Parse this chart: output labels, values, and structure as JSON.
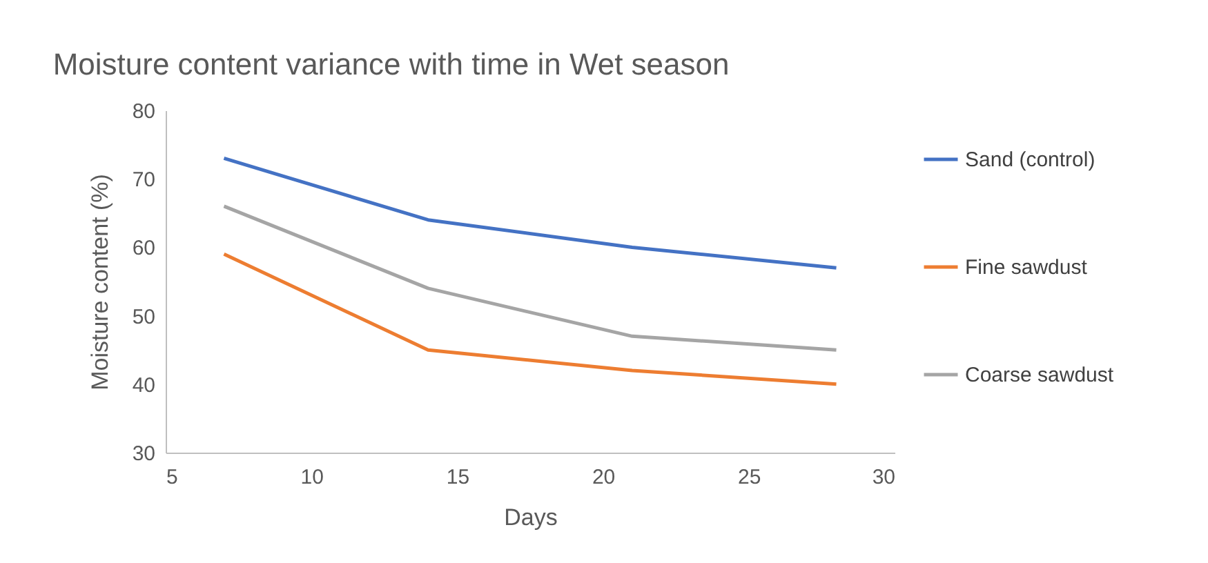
{
  "chart_data": {
    "type": "line",
    "title": "Moisture content variance with time in Wet season",
    "xlabel": "Days",
    "ylabel": "Moisture content (%)",
    "x": [
      7,
      14,
      21,
      28
    ],
    "series": [
      {
        "name": "Sand (control)",
        "color": "#4472c4",
        "values": [
          73,
          64,
          60,
          57
        ]
      },
      {
        "name": "Fine sawdust",
        "color": "#ed7d31",
        "values": [
          59,
          45,
          42,
          40
        ]
      },
      {
        "name": "Coarse sawdust",
        "color": "#a5a5a5",
        "values": [
          66,
          54,
          47,
          45
        ]
      }
    ],
    "xlim": [
      5,
      30
    ],
    "xticks": [
      5,
      10,
      15,
      20,
      25,
      30
    ],
    "ylim": [
      30,
      80
    ],
    "yticks": [
      30,
      40,
      50,
      60,
      70,
      80
    ],
    "grid": false,
    "legend": "right",
    "marker": "none",
    "line_style": "solid"
  }
}
